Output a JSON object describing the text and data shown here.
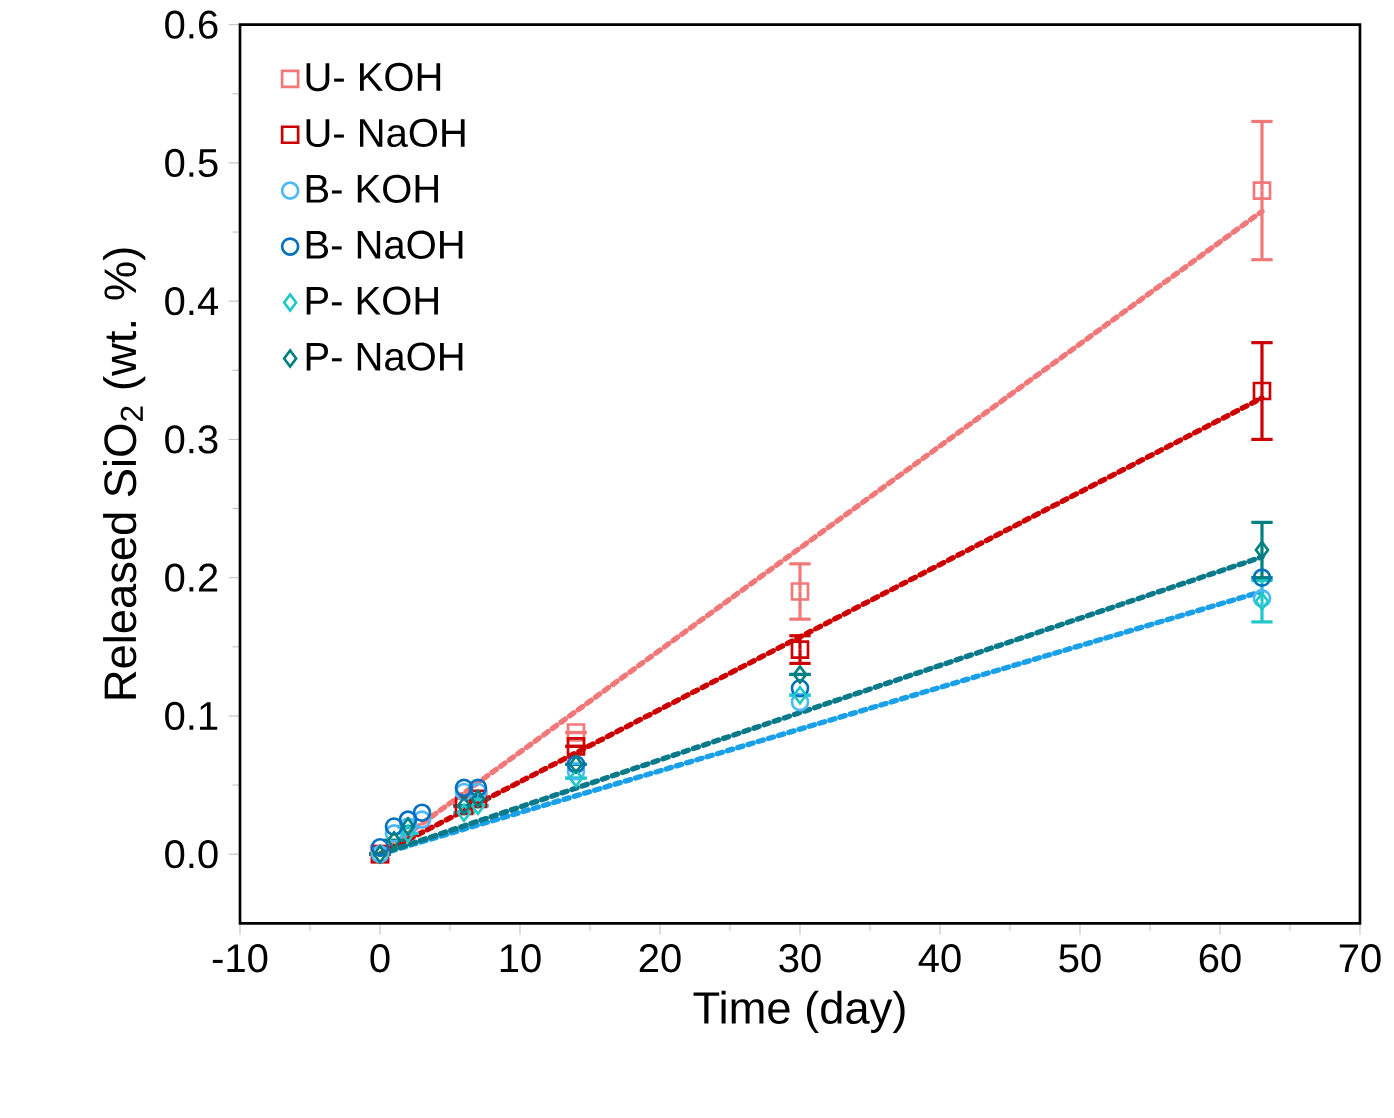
{
  "chart_data": {
    "type": "scatter",
    "xlabel": "Time (day)",
    "ylabel": "Released SiO$_{2}$ (wt. %)",
    "xlim": [
      -10,
      70
    ],
    "ylim": [
      -0.05,
      0.6
    ],
    "xticks": [
      -10,
      0,
      10,
      20,
      30,
      40,
      50,
      60,
      70
    ],
    "yticks": [
      {
        "value": 0,
        "label": "0.0"
      },
      {
        "value": 0.1,
        "label": "0.1"
      },
      {
        "value": 0.2,
        "label": "0.2"
      },
      {
        "value": 0.3,
        "label": "0.3"
      },
      {
        "value": 0.4,
        "label": "0.4"
      },
      {
        "value": 0.5,
        "label": "0.5"
      },
      {
        "value": 0.6,
        "label": "0.6"
      }
    ],
    "grid": false,
    "legend": "top left",
    "series": [
      {
        "type": "line",
        "color": "#f07878",
        "line_style": "dotted",
        "marker": "none",
        "x": [
          0,
          63
        ],
        "values": [
          0,
          0.465
        ]
      },
      {
        "type": "line",
        "color": "#cc0000",
        "line_style": "dotted",
        "marker": "none",
        "x": [
          0,
          63
        ],
        "values": [
          0,
          0.33
        ]
      },
      {
        "type": "line",
        "color": "#1aa0e8",
        "line_style": "dotted",
        "marker": "none",
        "x": [
          0,
          63
        ],
        "values": [
          0,
          0.19
        ]
      },
      {
        "type": "line",
        "color": "#0a7a8a",
        "line_style": "dotted",
        "marker": "none",
        "x": [
          0,
          63
        ],
        "values": [
          0,
          0.215
        ]
      },
      {
        "name": "U- KOH",
        "color": "#f07878",
        "marker": "square",
        "x": [
          0,
          3,
          6,
          7,
          14,
          30,
          63
        ],
        "values": [
          0,
          null,
          null,
          null,
          0.088,
          0.19,
          0.48
        ],
        "errors": [
          null,
          null,
          null,
          null,
          null,
          0.02,
          0.05
        ]
      },
      {
        "name": "U- NaOH",
        "color": "#cc0000",
        "marker": "square",
        "x": [
          0,
          2,
          6,
          7,
          14,
          30,
          63
        ],
        "values": [
          0,
          null,
          0.035,
          0.04,
          0.078,
          0.148,
          0.335
        ],
        "errors": [
          null,
          null,
          null,
          null,
          null,
          0.01,
          0.035
        ]
      },
      {
        "name": "B- KOH",
        "color": "#4db8ff",
        "marker": "circle",
        "x": [
          0,
          1,
          2,
          3,
          6,
          7,
          14,
          30,
          63
        ],
        "values": [
          0,
          0.015,
          0.02,
          0.025,
          0.045,
          0.045,
          0.06,
          0.11,
          0.185
        ]
      },
      {
        "name": "B- NaOH",
        "color": "#0070c0",
        "marker": "circle",
        "x": [
          0,
          1,
          2,
          3,
          6,
          7,
          14,
          30,
          63
        ],
        "values": [
          0.005,
          0.02,
          0.025,
          0.03,
          0.048,
          0.048,
          0.065,
          0.12,
          0.2
        ]
      },
      {
        "name": "P- KOH",
        "color": "#20c8c8",
        "marker": "diamond",
        "x": [
          2,
          6,
          7,
          14,
          30,
          63
        ],
        "values": [
          0.015,
          0.03,
          0.035,
          0.055,
          0.115,
          0.183
        ],
        "errors": [
          null,
          null,
          null,
          null,
          null,
          0.015
        ]
      },
      {
        "name": "P- NaOH",
        "color": "#008080",
        "marker": "diamond",
        "x": [
          0,
          1,
          2,
          6,
          7,
          14,
          30,
          63
        ],
        "values": [
          0,
          0.01,
          0.02,
          0.035,
          0.04,
          0.065,
          0.13,
          0.22
        ],
        "errors": [
          null,
          null,
          null,
          null,
          null,
          null,
          null,
          0.02
        ]
      }
    ]
  }
}
